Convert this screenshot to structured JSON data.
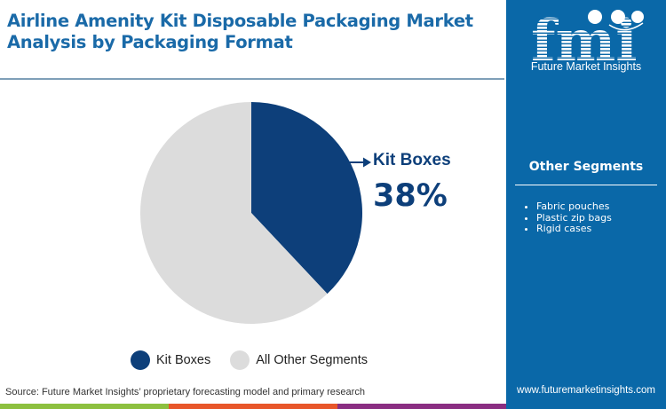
{
  "header": {
    "title_line1": "Airline Amenity Kit Disposable Packaging Market",
    "title_line2": "Analysis by Packaging Format"
  },
  "brand": {
    "logo_letters": "fmi",
    "name": "Future Market Insights",
    "website": "www.futuremarketinsights.com",
    "colors": {
      "sidebar": "#0a68a8",
      "title": "#1a6aa8",
      "strip_green": "#8dc03f",
      "strip_orange": "#e8562a",
      "strip_purple": "#8a2e82"
    }
  },
  "sidebar": {
    "segments_title": "Other Segments",
    "segments": [
      "Fabric pouches",
      "Plastic zip bags",
      "Rigid cases"
    ]
  },
  "callout": {
    "label": "Kit Boxes",
    "value": "38%"
  },
  "legend": [
    {
      "label": "Kit Boxes",
      "color": "#0d3f7a"
    },
    {
      "label": "All Other Segments",
      "color": "#dcdcdc"
    }
  ],
  "footer": {
    "source": "Source: Future Market Insights’ proprietary forecasting model and primary research"
  },
  "chart_data": {
    "type": "pie",
    "title": "Airline Amenity Kit Disposable Packaging Market Analysis by Packaging Format",
    "categories": [
      "Kit Boxes",
      "All Other Segments"
    ],
    "values": [
      38,
      62
    ],
    "colors": [
      "#0d3f7a",
      "#dcdcdc"
    ],
    "start_angle_deg": 0,
    "direction": "clockwise",
    "annotations": [
      {
        "target": "Kit Boxes",
        "text": "Kit Boxes 38%"
      }
    ],
    "legend_position": "bottom"
  }
}
